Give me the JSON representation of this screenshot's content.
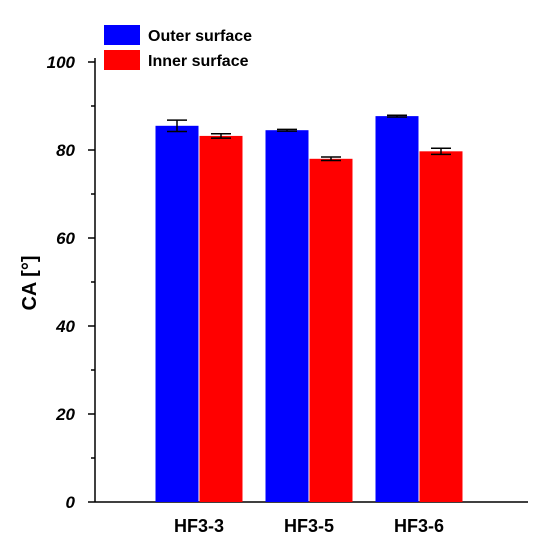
{
  "chart_data": {
    "type": "bar",
    "title": "",
    "xlabel": "",
    "ylabel": "CA [°]",
    "ylim": [
      0,
      100
    ],
    "yticks": [
      0,
      20,
      40,
      60,
      80,
      100
    ],
    "yticks_labels": [
      "0",
      "20",
      "40",
      "60",
      "80",
      "100"
    ],
    "categories": [
      "HF3-3",
      "HF3-5",
      "HF3-6"
    ],
    "series": [
      {
        "name": "Outer surface",
        "color": "#0000ff",
        "values": [
          85.5,
          84.5,
          87.7
        ],
        "errors": [
          1.3,
          0.2,
          0.2
        ]
      },
      {
        "name": "Inner surface",
        "color": "#ff0000",
        "values": [
          83.2,
          78.0,
          79.7
        ],
        "errors": [
          0.5,
          0.4,
          0.7
        ]
      }
    ],
    "legend_position": "top-left",
    "grid": false
  }
}
